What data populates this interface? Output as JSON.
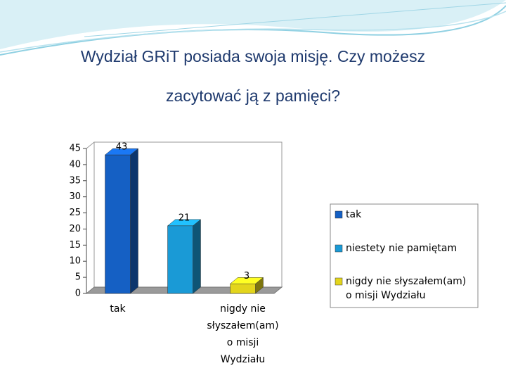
{
  "chart_data": {
    "type": "bar3d",
    "title": "Wydział GRiT posiada swoja misję. Czy możesz\nzacytować ją z pamięci?",
    "categories": [
      "tak",
      null,
      "nigdy nie\nsłyszałem(am)\no misji\nWydziału"
    ],
    "values": [
      43,
      21,
      3
    ],
    "colors": [
      "#1560c4",
      "#1a9ad6",
      "#e3d51c"
    ],
    "ylim": [
      0,
      45
    ],
    "yticks": [
      0,
      5,
      10,
      15,
      20,
      25,
      30,
      35,
      40,
      45
    ],
    "legend": {
      "position": "right",
      "labels": [
        "tak",
        "niestety nie pamiętam",
        "nigdy nie słyszałem(am)\no misji Wydziału"
      ]
    }
  }
}
